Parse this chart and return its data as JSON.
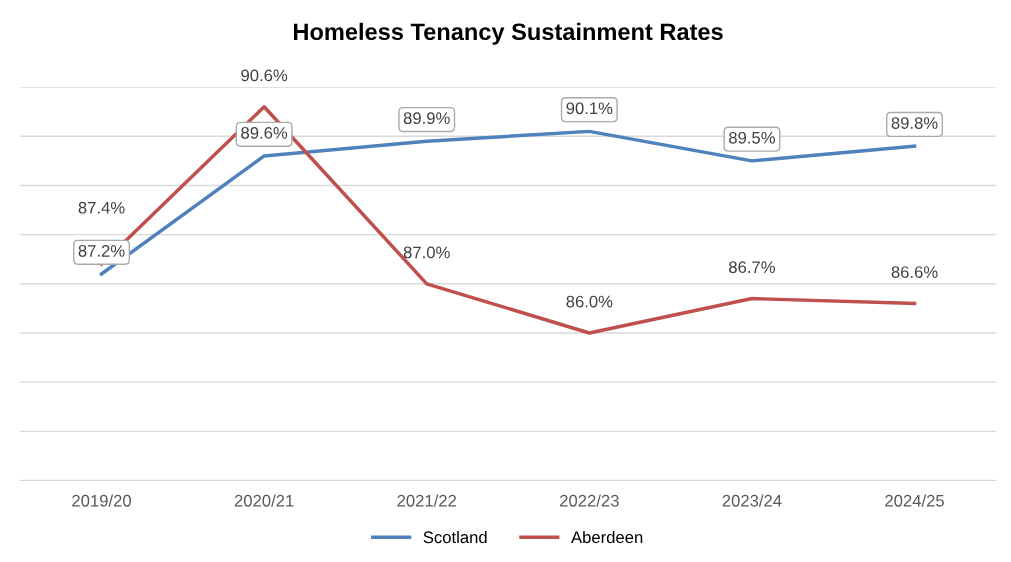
{
  "chart_data": {
    "type": "line",
    "title": "Homeless Tenancy Sustainment Rates",
    "categories": [
      "2019/20",
      "2020/21",
      "2021/22",
      "2022/23",
      "2023/24",
      "2024/25"
    ],
    "series": [
      {
        "name": "Scotland",
        "color": "#4f81bd",
        "values": [
          87.2,
          89.6,
          89.9,
          90.1,
          89.5,
          89.8
        ],
        "value_labels": [
          "87.2%",
          "89.6%",
          "89.9%",
          "90.1%",
          "89.5%",
          "89.8%"
        ]
      },
      {
        "name": "Aberdeen",
        "color": "#c0504d",
        "values": [
          87.4,
          90.6,
          87.0,
          86.0,
          86.7,
          86.6
        ],
        "value_labels": [
          "87.4%",
          "90.6%",
          "87.0%",
          "86.0%",
          "86.7%",
          "86.6%"
        ]
      }
    ],
    "ylim": [
      83,
      91
    ],
    "yticks": [
      {
        "value": 83,
        "label": null
      },
      {
        "value": 84,
        "label": null
      },
      {
        "value": 85,
        "label": null
      },
      {
        "value": 86,
        "label": null
      },
      {
        "value": 87,
        "label": null
      },
      {
        "value": 88,
        "label": null
      },
      {
        "value": 89,
        "label": null
      },
      {
        "value": 90,
        "label": null
      },
      {
        "value": 91,
        "label": null
      }
    ],
    "grid": "y",
    "legend": "bottom",
    "marker": "none",
    "line_style": "solid"
  }
}
